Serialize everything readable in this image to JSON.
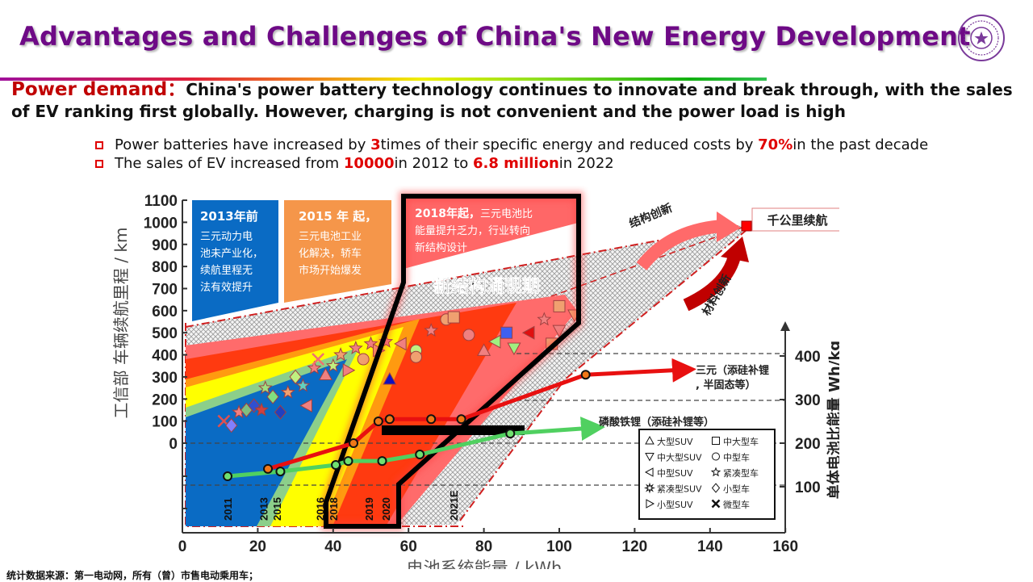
{
  "title": "Advantages and Challenges of China's New Energy Development",
  "logo_text": "清华大学 TSINGHUA 1911 UNIVERSITY",
  "headline": {
    "lead": "Power demand：",
    "text": "China's power battery technology continues to innovate and break through, with the sales of EV ranking first globally. However, charging is not convenient and the power load is high"
  },
  "bullets": [
    {
      "pre": "Power batteries have increased by ",
      "h1": "3",
      "mid": " times of their specific energy and reduced costs by ",
      "h2": "70%",
      "post": " in the past decade"
    },
    {
      "pre": "The sales of EV increased from ",
      "h1": "10000",
      "mid": " in 2012 to ",
      "h2": "6.8 million",
      "post": " in 2022"
    }
  ],
  "footnote": "统计数据来源：第一电动网，所有（曾）市售电动乘用车；",
  "colors": {
    "title": "#6e0a86",
    "accent": "#e00000",
    "ternary": "#e81010",
    "lfp": "#50d060"
  },
  "chart_data": {
    "type": "scatter",
    "xlabel": "电池系统能量 / kWh",
    "ylabel_left": "工信部 车辆续航里程 / km",
    "ylabel_right": "单体电池比能量 Wh/kg",
    "xlim": [
      0,
      160
    ],
    "x_ticks": [
      "0",
      "20",
      "40",
      "60",
      "80",
      "100",
      "120",
      "140",
      "160"
    ],
    "ylim_left": [
      0,
      1100
    ],
    "y_ticks_left": [
      "1100",
      "1000",
      "900",
      "800",
      "700",
      "600",
      "500",
      "400",
      "300",
      "200",
      "100",
      "0"
    ],
    "y_ticks_right": [
      "400",
      "300",
      "200",
      "100"
    ],
    "phases": [
      {
        "title": "2013年前",
        "text": [
          "三元动力电",
          "池未产业化，",
          "续航里程无",
          "法有效提升"
        ]
      },
      {
        "title": "2015 年 起，",
        "text": [
          "三元电池工业",
          "化解决，轿车",
          "市场开始爆发"
        ]
      },
      {
        "title": "2018年起，",
        "text": [
          "三元电池比",
          "能量提升乏力，行业转向",
          "新结构设计"
        ]
      }
    ],
    "period_label": "新结构涌现期",
    "annotations": {
      "structure": "结构创新",
      "material": "材料创新",
      "target": "千公里续航",
      "ternary": [
        "三元（添硅补锂",
        ", 半固态等）"
      ],
      "lfp": "磷酸铁锂（添硅补锂等）"
    },
    "year_labels": [
      {
        "year": "2011",
        "kwh": 12
      },
      {
        "year": "2013",
        "kwh": 21.5
      },
      {
        "year": "2015",
        "kwh": 25
      },
      {
        "year": "2016",
        "kwh": 36.5
      },
      {
        "year": "2018",
        "kwh": 40
      },
      {
        "year": "2019",
        "kwh": 49.5
      },
      {
        "year": "2020",
        "kwh": 54
      },
      {
        "year": "2021E",
        "kwh": 72
      }
    ],
    "series": [
      {
        "name": "三元",
        "unit": "Wh/kg",
        "points": [
          [
            22.7,
            141
          ],
          [
            45.4,
            200
          ],
          [
            52,
            250
          ],
          [
            55,
            255
          ],
          [
            66,
            255
          ],
          [
            74,
            255
          ],
          [
            107,
            357
          ]
        ]
      },
      {
        "name": "磷酸铁锂",
        "unit": "Wh/kg",
        "points": [
          [
            12,
            124
          ],
          [
            26,
            135
          ],
          [
            40.7,
            150
          ],
          [
            44,
            159
          ],
          [
            53,
            159
          ],
          [
            63,
            174
          ],
          [
            87,
            222
          ]
        ]
      }
    ],
    "legend": [
      {
        "shape": "triangle-up",
        "label": "大型SUV"
      },
      {
        "shape": "square",
        "label": "中大型车"
      },
      {
        "shape": "triangle-down",
        "label": "中大型SUV"
      },
      {
        "shape": "circle",
        "label": "中型车"
      },
      {
        "shape": "triangle-left",
        "label": "中型SUV"
      },
      {
        "shape": "star",
        "label": "紧凑型车"
      },
      {
        "shape": "flower",
        "label": "紧凑型SUV"
      },
      {
        "shape": "diamond",
        "label": "小型车"
      },
      {
        "shape": "triangle-right",
        "label": "小型SUV"
      },
      {
        "shape": "x",
        "label": "微型车"
      }
    ],
    "scatter": [
      [
        11,
        100,
        "x",
        "#e05050"
      ],
      [
        13,
        80,
        "diamond",
        "#8080ff"
      ],
      [
        15,
        140,
        "star",
        "#f08080"
      ],
      [
        17,
        150,
        "diamond",
        "#80c080"
      ],
      [
        19,
        170,
        "diamond",
        "#3050d0"
      ],
      [
        21,
        150,
        "star",
        "#d04040"
      ],
      [
        22,
        250,
        "star",
        "#a0e080"
      ],
      [
        24,
        210,
        "diamond",
        "#80e080"
      ],
      [
        26,
        140,
        "diamond",
        "#2040c0"
      ],
      [
        28,
        230,
        "star",
        "#f0a070"
      ],
      [
        30,
        300,
        "diamond",
        "#c0f080"
      ],
      [
        32,
        260,
        "star",
        "#60d0c0"
      ],
      [
        33,
        170,
        "triangle-left",
        "#f08080"
      ],
      [
        35,
        340,
        "star",
        "#f08080"
      ],
      [
        36,
        380,
        "x",
        "#f07070"
      ],
      [
        38,
        310,
        "triangle-up",
        "#f08080"
      ],
      [
        40,
        350,
        "star",
        "#c0f080"
      ],
      [
        42,
        400,
        "star",
        "#f0a070"
      ],
      [
        44,
        330,
        "triangle-right",
        "#f08080"
      ],
      [
        46,
        430,
        "star",
        "#f08080"
      ],
      [
        48,
        380,
        "circle",
        "#f0a070"
      ],
      [
        50,
        450,
        "star",
        "#f08080"
      ],
      [
        52,
        420,
        "triangle-right",
        "#f0a070"
      ],
      [
        54,
        460,
        "star",
        "#f08080"
      ],
      [
        55,
        290,
        "triangle-up",
        "#1010c0"
      ],
      [
        58,
        450,
        "triangle-left",
        "#f08080"
      ],
      [
        62,
        420,
        "circle",
        "#c0f080"
      ],
      [
        62,
        390,
        "circle",
        "#f0a070"
      ],
      [
        66,
        510,
        "star",
        "#f08080"
      ],
      [
        70,
        560,
        "circle",
        "#f0a070"
      ],
      [
        72,
        570,
        "square",
        "#f0a070"
      ],
      [
        76,
        490,
        "circle",
        "#f08080"
      ],
      [
        80,
        420,
        "triangle-up",
        "#f08080"
      ],
      [
        83,
        460,
        "triangle-left",
        "#a0f080"
      ],
      [
        86,
        500,
        "square",
        "#4060f0"
      ],
      [
        88,
        430,
        "triangle-down",
        "#a0f080"
      ],
      [
        92,
        500,
        "triangle-left",
        "#e01010"
      ],
      [
        96,
        560,
        "star",
        "#f08080"
      ],
      [
        100,
        510,
        "triangle-down",
        "#f08080"
      ],
      [
        100,
        620,
        "square",
        "#f0a070"
      ],
      [
        98,
        450,
        "square",
        "#f0a070"
      ],
      [
        104,
        580,
        "triangle-down",
        "#f0a070"
      ]
    ]
  }
}
